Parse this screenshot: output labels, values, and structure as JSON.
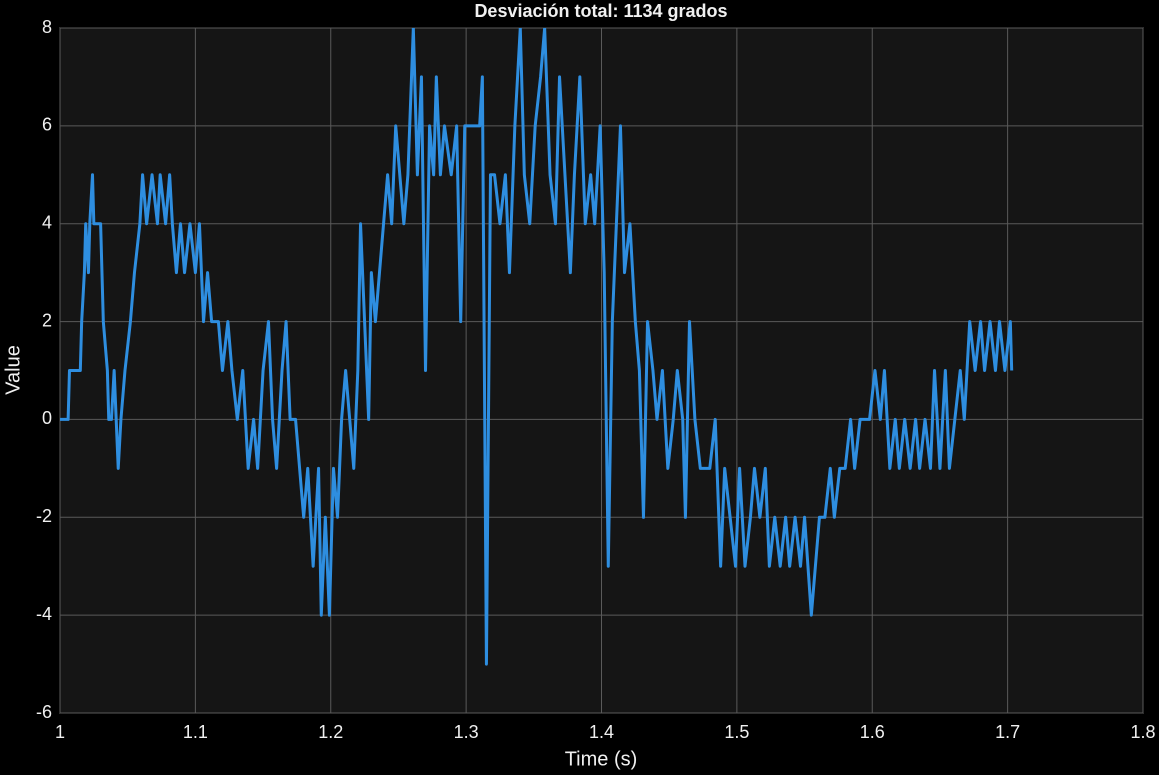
{
  "chart_data": {
    "type": "line",
    "title": "Desviación total: 1134 grados",
    "xlabel": "Time (s)",
    "ylabel": "Value",
    "xlim": [
      1,
      1.8
    ],
    "ylim": [
      -6,
      8
    ],
    "xticks": [
      1,
      1.1,
      1.2,
      1.3,
      1.4,
      1.5,
      1.6,
      1.7,
      1.8
    ],
    "yticks": [
      -6,
      -4,
      -2,
      0,
      2,
      4,
      6,
      8
    ],
    "grid": true,
    "x": [
      1.0,
      1.006,
      1.007,
      1.015,
      1.016,
      1.018,
      1.019,
      1.021,
      1.022,
      1.024,
      1.025,
      1.03,
      1.032,
      1.035,
      1.036,
      1.038,
      1.04,
      1.043,
      1.045,
      1.048,
      1.052,
      1.055,
      1.059,
      1.061,
      1.064,
      1.068,
      1.072,
      1.074,
      1.078,
      1.081,
      1.083,
      1.086,
      1.089,
      1.092,
      1.096,
      1.1,
      1.103,
      1.106,
      1.109,
      1.112,
      1.117,
      1.12,
      1.124,
      1.127,
      1.131,
      1.135,
      1.139,
      1.143,
      1.146,
      1.15,
      1.154,
      1.157,
      1.16,
      1.164,
      1.167,
      1.17,
      1.174,
      1.177,
      1.18,
      1.183,
      1.187,
      1.191,
      1.193,
      1.196,
      1.199,
      1.202,
      1.205,
      1.208,
      1.211,
      1.214,
      1.217,
      1.22,
      1.222,
      1.225,
      1.228,
      1.23,
      1.233,
      1.236,
      1.239,
      1.242,
      1.245,
      1.248,
      1.251,
      1.254,
      1.257,
      1.261,
      1.264,
      1.267,
      1.27,
      1.273,
      1.276,
      1.278,
      1.281,
      1.284,
      1.289,
      1.293,
      1.296,
      1.299,
      1.303,
      1.306,
      1.31,
      1.312,
      1.315,
      1.318,
      1.321,
      1.325,
      1.329,
      1.332,
      1.336,
      1.34,
      1.343,
      1.347,
      1.351,
      1.355,
      1.358,
      1.362,
      1.366,
      1.369,
      1.373,
      1.377,
      1.38,
      1.384,
      1.388,
      1.392,
      1.395,
      1.399,
      1.402,
      1.405,
      1.408,
      1.411,
      1.414,
      1.417,
      1.421,
      1.425,
      1.428,
      1.431,
      1.434,
      1.438,
      1.441,
      1.445,
      1.449,
      1.453,
      1.456,
      1.46,
      1.462,
      1.465,
      1.469,
      1.473,
      1.48,
      1.484,
      1.488,
      1.491,
      1.495,
      1.499,
      1.502,
      1.506,
      1.51,
      1.513,
      1.517,
      1.521,
      1.524,
      1.528,
      1.532,
      1.536,
      1.539,
      1.543,
      1.547,
      1.55,
      1.555,
      1.558,
      1.561,
      1.565,
      1.569,
      1.572,
      1.576,
      1.58,
      1.584,
      1.587,
      1.591,
      1.598,
      1.602,
      1.606,
      1.609,
      1.613,
      1.617,
      1.62,
      1.624,
      1.628,
      1.632,
      1.635,
      1.639,
      1.643,
      1.646,
      1.65,
      1.654,
      1.657,
      1.661,
      1.665,
      1.668,
      1.672,
      1.676,
      1.68,
      1.683,
      1.687,
      1.691,
      1.694,
      1.698,
      1.702,
      1.703
    ],
    "series": [
      {
        "color": "#2e8ee0",
        "values": [
          0,
          0,
          1,
          1,
          2,
          3,
          4,
          3,
          4,
          5,
          4,
          4,
          2,
          1,
          0,
          0,
          1,
          -1,
          0,
          1,
          2,
          3,
          4,
          5,
          4,
          5,
          4,
          5,
          4,
          5,
          4,
          3,
          4,
          3,
          4,
          3,
          4,
          2,
          3,
          2,
          2,
          1,
          2,
          1,
          0,
          1,
          -1,
          0,
          -1,
          1,
          2,
          0,
          -1,
          1,
          2,
          0,
          0,
          -1,
          -2,
          -1,
          -3,
          -1,
          -4,
          -2,
          -4,
          -1,
          -2,
          0,
          1,
          0,
          -1,
          1,
          4,
          2,
          0,
          3,
          2,
          3,
          4,
          5,
          4,
          6,
          5,
          4,
          5,
          8,
          5,
          7,
          1,
          6,
          5,
          7,
          5,
          6,
          5,
          6,
          2,
          6,
          6,
          6,
          6,
          7,
          -5,
          5,
          5,
          4,
          5,
          3,
          6,
          8,
          5,
          4,
          6,
          7,
          8,
          5,
          4,
          7,
          5,
          3,
          5,
          7,
          4,
          5,
          4,
          6,
          3,
          -3,
          2,
          4,
          6,
          3,
          4,
          2,
          1,
          -2,
          2,
          1,
          0,
          1,
          -1,
          0,
          1,
          0,
          -2,
          2,
          0,
          -1,
          -1,
          0,
          -3,
          -1,
          -2,
          -3,
          -1,
          -3,
          -2,
          -1,
          -2,
          -1,
          -3,
          -2,
          -3,
          -2,
          -3,
          -2,
          -3,
          -2,
          -4,
          -3,
          -2,
          -2,
          -1,
          -2,
          -1,
          -1,
          0,
          -1,
          0,
          0,
          1,
          0,
          1,
          -1,
          0,
          -1,
          0,
          -1,
          0,
          -1,
          0,
          -1,
          1,
          -1,
          1,
          -1,
          0,
          1,
          0,
          2,
          1,
          2,
          1,
          2,
          1,
          2,
          1,
          2,
          1
        ]
      }
    ]
  }
}
